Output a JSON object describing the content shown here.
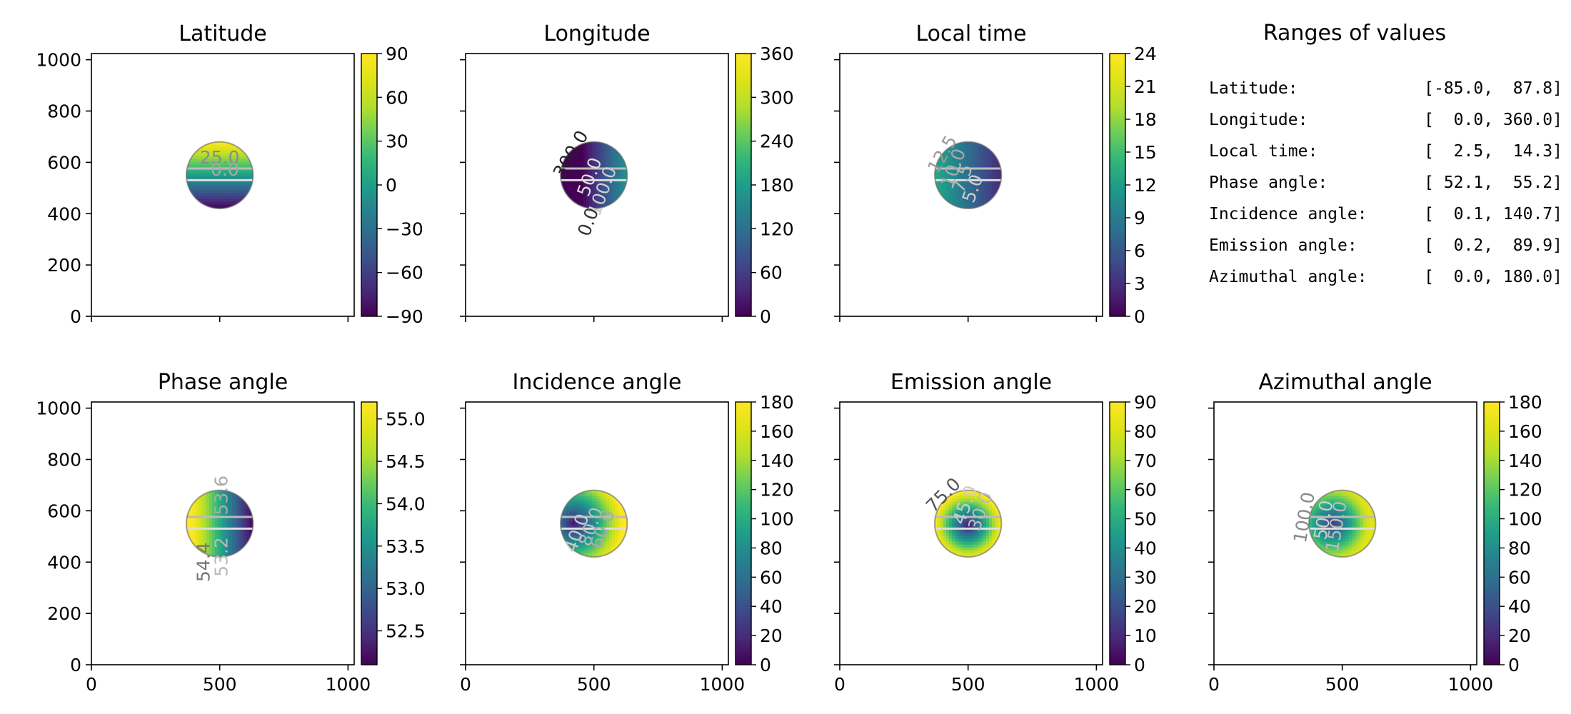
{
  "chart_data": [
    {
      "type": "heatmap",
      "title": "Latitude",
      "xlim": [
        0,
        1024
      ],
      "ylim": [
        0,
        1024
      ],
      "xticks": [
        0,
        500,
        1000
      ],
      "yticks": [
        0,
        200,
        400,
        600,
        800,
        1000
      ],
      "show_xticklabels": false,
      "show_yticklabels": true,
      "colormap": "viridis",
      "colorbar": {
        "range": [
          -90,
          90
        ],
        "ticks": [
          -90,
          -60,
          -30,
          0,
          30,
          60,
          90
        ],
        "tick_labels": [
          "−90",
          "−60",
          "−30",
          "0",
          "30",
          "60",
          "90"
        ]
      },
      "disk": {
        "center": [
          500,
          550
        ],
        "radius": 130
      },
      "field": "latitude",
      "contour_labels": [
        {
          "text": "25.0",
          "x": 500,
          "y": 595,
          "angle": 0,
          "color": "#8a8a8a"
        },
        {
          "text": "0.0",
          "x": 520,
          "y": 548,
          "angle": 0,
          "color": "#a8a8a8"
        }
      ]
    },
    {
      "type": "heatmap",
      "title": "Longitude",
      "xlim": [
        0,
        1024
      ],
      "ylim": [
        0,
        1024
      ],
      "xticks": [
        0,
        500,
        1000
      ],
      "yticks": [
        0,
        200,
        400,
        600,
        800,
        1000
      ],
      "show_xticklabels": false,
      "show_yticklabels": false,
      "colormap": "viridis",
      "colorbar": {
        "range": [
          0,
          360
        ],
        "ticks": [
          0,
          60,
          120,
          180,
          240,
          300,
          360
        ],
        "tick_labels": [
          "0",
          "60",
          "120",
          "180",
          "240",
          "300",
          "360"
        ]
      },
      "disk": {
        "center": [
          500,
          550
        ],
        "radius": 130
      },
      "field": "longitude",
      "contour_labels": [
        {
          "text": "300.0",
          "x": 430,
          "y": 620,
          "angle": -60,
          "color": "#222222"
        },
        {
          "text": "50.0",
          "x": 505,
          "y": 535,
          "angle": -70,
          "color": "#dddddd"
        },
        {
          "text": "100.0",
          "x": 555,
          "y": 480,
          "angle": -70,
          "color": "#cccccc"
        },
        {
          "text": "0.0",
          "x": 500,
          "y": 360,
          "angle": -70,
          "color": "#333333"
        }
      ]
    },
    {
      "type": "heatmap",
      "title": "Local time",
      "xlim": [
        0,
        1024
      ],
      "ylim": [
        0,
        1024
      ],
      "xticks": [
        0,
        500,
        1000
      ],
      "yticks": [
        0,
        200,
        400,
        600,
        800,
        1000
      ],
      "show_xticklabels": false,
      "show_yticklabels": false,
      "colormap": "viridis",
      "colorbar": {
        "range": [
          0,
          24
        ],
        "ticks": [
          0,
          3,
          6,
          9,
          12,
          15,
          18,
          21,
          24
        ],
        "tick_labels": [
          "0",
          "3",
          "6",
          "9",
          "12",
          "15",
          "18",
          "21",
          "24"
        ]
      },
      "disk": {
        "center": [
          500,
          550
        ],
        "radius": 130
      },
      "field": "localtime",
      "contour_labels": [
        {
          "text": "12.5",
          "x": 420,
          "y": 620,
          "angle": -60,
          "color": "#999999"
        },
        {
          "text": "10.0",
          "x": 465,
          "y": 570,
          "angle": -70,
          "color": "#aaaaaa"
        },
        {
          "text": "7.5",
          "x": 500,
          "y": 530,
          "angle": -70,
          "color": "#bbbbbb"
        },
        {
          "text": "5.0",
          "x": 540,
          "y": 490,
          "angle": -70,
          "color": "#cccccc"
        }
      ]
    },
    {
      "type": "heatmap",
      "title": "Phase angle",
      "xlim": [
        0,
        1024
      ],
      "ylim": [
        0,
        1024
      ],
      "xticks": [
        0,
        500,
        1000
      ],
      "yticks": [
        0,
        200,
        400,
        600,
        800,
        1000
      ],
      "show_xticklabels": true,
      "show_yticklabels": true,
      "colormap": "viridis",
      "colorbar": {
        "range": [
          52.1,
          55.2
        ],
        "ticks": [
          52.5,
          53.0,
          53.5,
          54.0,
          54.5,
          55.0
        ],
        "tick_labels": [
          "52.5",
          "53.0",
          "53.5",
          "54.0",
          "54.5",
          "55.0"
        ]
      },
      "disk": {
        "center": [
          500,
          550
        ],
        "radius": 130
      },
      "field": "phase",
      "contour_labels": [
        {
          "text": "53.6",
          "x": 530,
          "y": 660,
          "angle": -90,
          "color": "#aaaaaa"
        },
        {
          "text": "53.2",
          "x": 530,
          "y": 420,
          "angle": -90,
          "color": "#bbbbbb"
        },
        {
          "text": "54.4",
          "x": 460,
          "y": 400,
          "angle": -90,
          "color": "#777777"
        }
      ]
    },
    {
      "type": "heatmap",
      "title": "Incidence angle",
      "xlim": [
        0,
        1024
      ],
      "ylim": [
        0,
        1024
      ],
      "xticks": [
        0,
        500,
        1000
      ],
      "yticks": [
        0,
        200,
        400,
        600,
        800,
        1000
      ],
      "show_xticklabels": true,
      "show_yticklabels": false,
      "colormap": "viridis",
      "colorbar": {
        "range": [
          0,
          180
        ],
        "ticks": [
          0,
          20,
          40,
          60,
          80,
          100,
          120,
          140,
          160,
          180
        ],
        "tick_labels": [
          "0",
          "20",
          "40",
          "60",
          "80",
          "100",
          "120",
          "140",
          "160",
          "180"
        ]
      },
      "disk": {
        "center": [
          500,
          550
        ],
        "radius": 130
      },
      "field": "incidence",
      "contour_labels": [
        {
          "text": "40.0",
          "x": 455,
          "y": 505,
          "angle": -70,
          "color": "#cccccc"
        },
        {
          "text": "80.0",
          "x": 510,
          "y": 530,
          "angle": -70,
          "color": "#bbbbbb"
        },
        {
          "text": "60.0",
          "x": 555,
          "y": 520,
          "angle": -70,
          "color": "#aaaaaa"
        }
      ]
    },
    {
      "type": "heatmap",
      "title": "Emission angle",
      "xlim": [
        0,
        1024
      ],
      "ylim": [
        0,
        1024
      ],
      "xticks": [
        0,
        500,
        1000
      ],
      "yticks": [
        0,
        200,
        400,
        600,
        800,
        1000
      ],
      "show_xticklabels": true,
      "show_yticklabels": false,
      "colormap": "viridis",
      "colorbar": {
        "range": [
          0,
          90
        ],
        "ticks": [
          0,
          10,
          20,
          30,
          40,
          50,
          60,
          70,
          80,
          90
        ],
        "tick_labels": [
          "0",
          "10",
          "20",
          "30",
          "40",
          "50",
          "60",
          "70",
          "80",
          "90"
        ]
      },
      "disk": {
        "center": [
          500,
          550
        ],
        "radius": 130
      },
      "field": "emission",
      "contour_labels": [
        {
          "text": "75.0",
          "x": 420,
          "y": 645,
          "angle": -45,
          "color": "#555555"
        },
        {
          "text": "45.0",
          "x": 510,
          "y": 615,
          "angle": -70,
          "color": "#cccccc"
        },
        {
          "text": "30.0",
          "x": 570,
          "y": 590,
          "angle": -70,
          "color": "#bbbbbb"
        }
      ]
    },
    {
      "type": "heatmap",
      "title": "Azimuthal angle",
      "xlim": [
        0,
        1024
      ],
      "ylim": [
        0,
        1024
      ],
      "xticks": [
        0,
        500,
        1000
      ],
      "yticks": [
        0,
        200,
        400,
        600,
        800,
        1000
      ],
      "show_xticklabels": true,
      "show_yticklabels": false,
      "colormap": "viridis",
      "colorbar": {
        "range": [
          0,
          180
        ],
        "ticks": [
          0,
          20,
          40,
          60,
          80,
          100,
          120,
          140,
          160,
          180
        ],
        "tick_labels": [
          "0",
          "20",
          "40",
          "60",
          "80",
          "100",
          "120",
          "140",
          "160",
          "180"
        ]
      },
      "disk": {
        "center": [
          500,
          550
        ],
        "radius": 130
      },
      "field": "azimuth",
      "contour_labels": [
        {
          "text": "100.0",
          "x": 375,
          "y": 570,
          "angle": -80,
          "color": "#888888"
        },
        {
          "text": "50.0",
          "x": 450,
          "y": 560,
          "angle": -80,
          "color": "#cccccc"
        },
        {
          "text": "150.0",
          "x": 500,
          "y": 535,
          "angle": -80,
          "color": "#bbbbbb"
        }
      ]
    }
  ],
  "ranges_panel": {
    "title": "Ranges of values",
    "rows": [
      {
        "label": "Latitude:",
        "value": "[-85.0,  87.8]"
      },
      {
        "label": "Longitude:",
        "value": "[  0.0, 360.0]"
      },
      {
        "label": "Local time:",
        "value": "[  2.5,  14.3]"
      },
      {
        "label": "Phase angle:",
        "value": "[ 52.1,  55.2]"
      },
      {
        "label": "Incidence angle:",
        "value": "[  0.1, 140.7]"
      },
      {
        "label": "Emission angle:",
        "value": "[  0.2,  89.9]"
      },
      {
        "label": "Azimuthal angle:",
        "value": "[  0.0, 180.0]"
      }
    ]
  }
}
